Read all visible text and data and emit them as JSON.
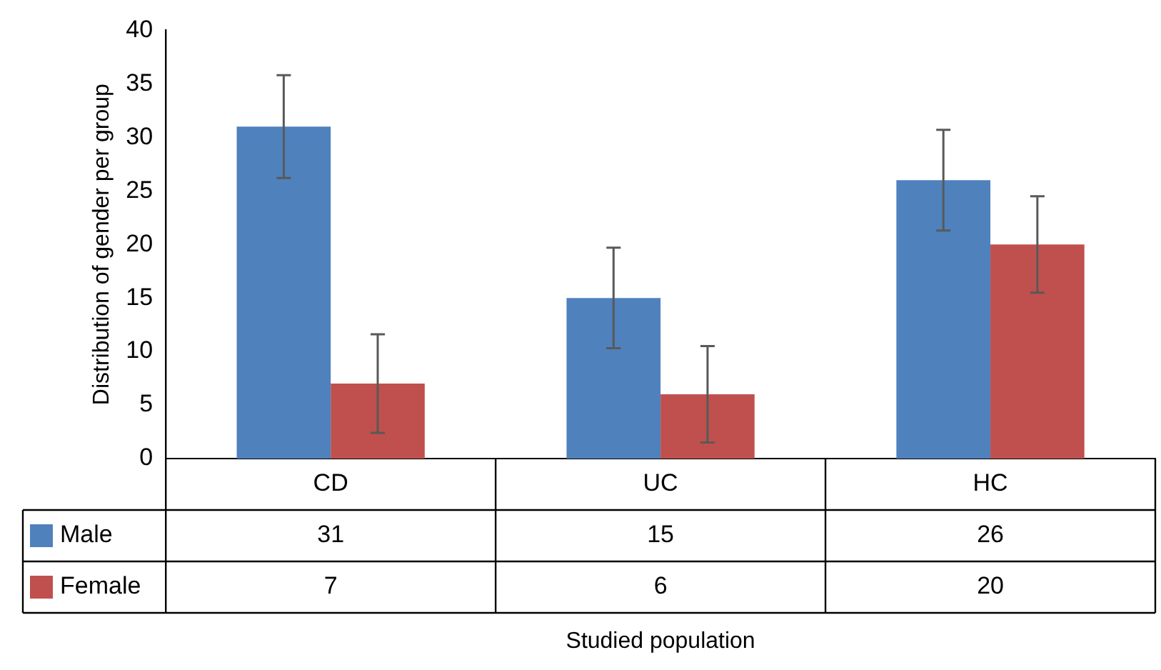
{
  "chart_data": {
    "type": "bar",
    "annotations": [
      "Studied population"
    ],
    "ylabel": "Distribution of gender per group",
    "categories": [
      "CD",
      "UC",
      "HC"
    ],
    "series": [
      {
        "name": "Male",
        "color": "#4f81bd",
        "values": [
          31,
          15,
          26
        ],
        "errors": [
          4.8,
          4.7,
          4.7
        ]
      },
      {
        "name": "Female",
        "color": "#c0504d",
        "values": [
          7,
          6,
          20
        ],
        "errors": [
          4.6,
          4.5,
          4.5
        ]
      }
    ],
    "ylim": [
      0,
      40
    ],
    "yticks": [
      0,
      5,
      10,
      15,
      20,
      25,
      30,
      35,
      40
    ],
    "grid": false,
    "data_labels": true,
    "legend": "left"
  }
}
